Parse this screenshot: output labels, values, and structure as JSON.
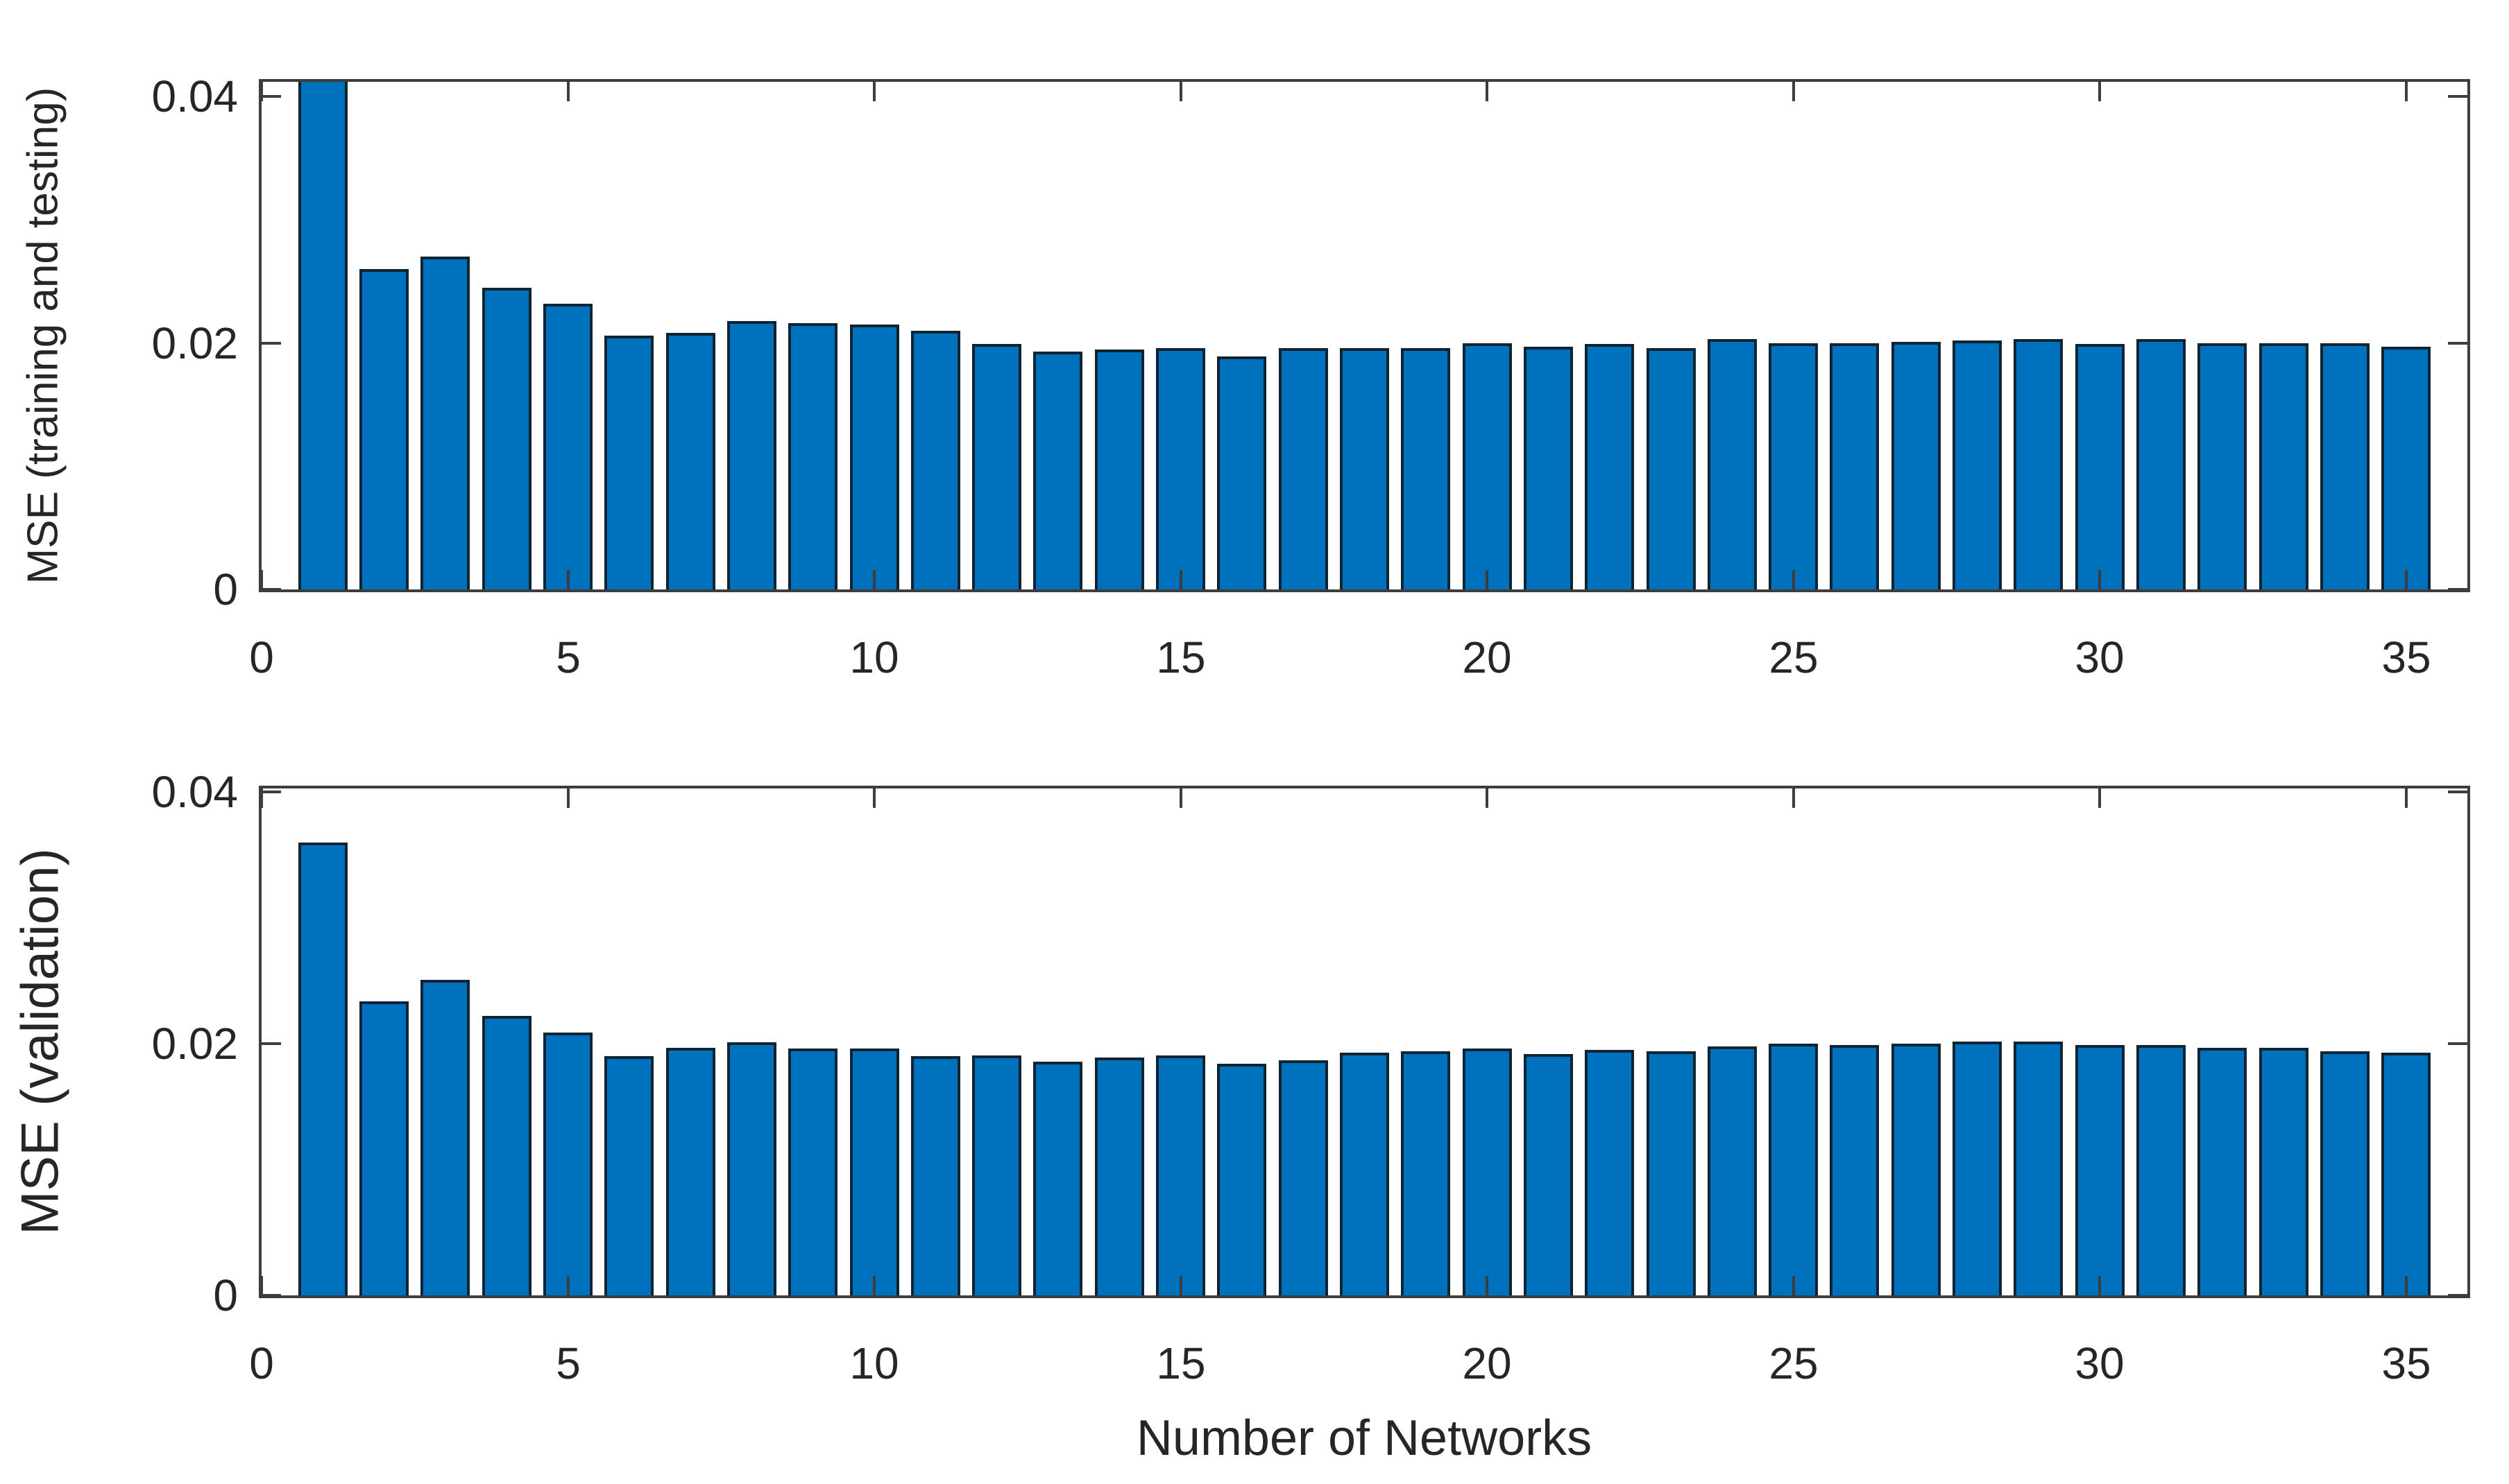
{
  "figure": {
    "background": "#ffffff",
    "bar_color": "#0072BD",
    "bar_edge_color": "#0e2433",
    "axis_color": "#3d3d3d",
    "text_color": "#262626"
  },
  "chart_data": [
    {
      "type": "bar",
      "title": "",
      "ylabel": "MSE (training and testing)",
      "xlabel": "",
      "categories": [
        1,
        2,
        3,
        4,
        5,
        6,
        7,
        8,
        9,
        10,
        11,
        12,
        13,
        14,
        15,
        16,
        17,
        18,
        19,
        20,
        21,
        22,
        23,
        24,
        25,
        26,
        27,
        28,
        29,
        30,
        31,
        32,
        33,
        34,
        35
      ],
      "values": [
        0.0415,
        0.026,
        0.027,
        0.0245,
        0.0232,
        0.0206,
        0.0208,
        0.0218,
        0.0216,
        0.0215,
        0.021,
        0.0199,
        0.0193,
        0.0195,
        0.0196,
        0.0189,
        0.0196,
        0.0196,
        0.0196,
        0.02,
        0.0197,
        0.0199,
        0.0196,
        0.0203,
        0.02,
        0.02,
        0.0201,
        0.0202,
        0.0203,
        0.0199,
        0.0203,
        0.02,
        0.02,
        0.02,
        0.0197
      ],
      "first_bar_clipped": true,
      "xlim": [
        0,
        36
      ],
      "ylim": [
        0,
        0.0412
      ],
      "xtick_values": [
        0,
        5,
        10,
        15,
        20,
        25,
        30,
        35
      ],
      "xtick_labels": [
        "0",
        "5",
        "10",
        "15",
        "20",
        "25",
        "30",
        "35"
      ],
      "ytick_values": [
        0,
        0.02,
        0.04
      ],
      "ytick_labels": [
        "0",
        "0.02",
        "0.04"
      ],
      "bar_width_fraction": 0.8,
      "grid": "off",
      "legend": "none"
    },
    {
      "type": "bar",
      "title": "",
      "ylabel": "MSE (validation)",
      "xlabel": "Number of Networks",
      "categories": [
        1,
        2,
        3,
        4,
        5,
        6,
        7,
        8,
        9,
        10,
        11,
        12,
        13,
        14,
        15,
        16,
        17,
        18,
        19,
        20,
        21,
        22,
        23,
        24,
        25,
        26,
        27,
        28,
        29,
        30,
        31,
        32,
        33,
        34,
        35
      ],
      "values": [
        0.036,
        0.0234,
        0.0251,
        0.0222,
        0.0209,
        0.019,
        0.0197,
        0.0201,
        0.0196,
        0.0196,
        0.019,
        0.0191,
        0.0186,
        0.0189,
        0.0191,
        0.0184,
        0.0187,
        0.0193,
        0.0194,
        0.0196,
        0.0192,
        0.0195,
        0.0194,
        0.0198,
        0.02,
        0.0199,
        0.02,
        0.0202,
        0.0202,
        0.0199,
        0.0199,
        0.0197,
        0.0197,
        0.0194,
        0.0193
      ],
      "first_bar_clipped": false,
      "xlim": [
        0,
        36
      ],
      "ylim": [
        0,
        0.0403
      ],
      "xtick_values": [
        0,
        5,
        10,
        15,
        20,
        25,
        30,
        35
      ],
      "xtick_labels": [
        "0",
        "5",
        "10",
        "15",
        "20",
        "25",
        "30",
        "35"
      ],
      "ytick_values": [
        0,
        0.02,
        0.04
      ],
      "ytick_labels": [
        "0",
        "0.02",
        "0.04"
      ],
      "bar_width_fraction": 0.8,
      "grid": "off",
      "legend": "none"
    }
  ]
}
